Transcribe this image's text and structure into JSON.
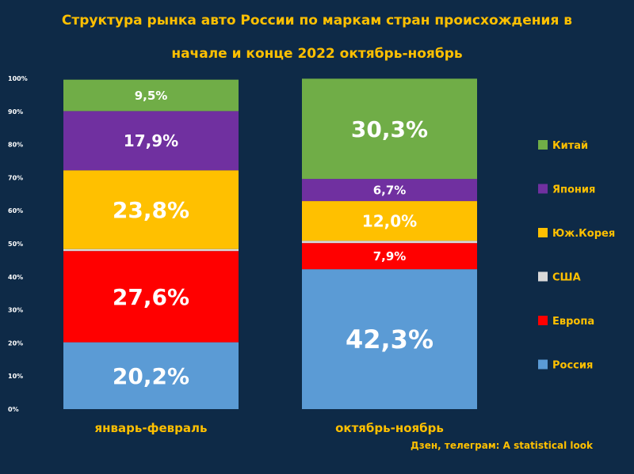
{
  "title_line1": "Структура рынка авто России по маркам стран происхождения в",
  "title_line2": "начале и конце 2022    октябрь-ноябрь",
  "source": "Дзен, телеграм: A statistical look",
  "colors": {
    "background": "#0e2a47",
    "title": "#ffc000",
    "axis_text": "#ffffff"
  },
  "chart_data": {
    "type": "bar",
    "stacked": true,
    "categories": [
      "январь-февраль",
      "октябрь-ноябрь"
    ],
    "series": [
      {
        "name": "Россия",
        "color": "#5b9bd5",
        "values": [
          20.2,
          42.3
        ],
        "labels": [
          "20,2%",
          "42,3%"
        ]
      },
      {
        "name": "Европа",
        "color": "#ff0000",
        "values": [
          27.6,
          7.9
        ],
        "labels": [
          "27,6%",
          "7,9%"
        ]
      },
      {
        "name": "США",
        "color": "#d9d9d9",
        "values": [
          0.6,
          0.7
        ],
        "labels": [
          "",
          ""
        ]
      },
      {
        "name": "Юж.Корея",
        "color": "#ffc000",
        "values": [
          23.8,
          12.0
        ],
        "labels": [
          "23,8%",
          "12,0%"
        ]
      },
      {
        "name": "Япония",
        "color": "#7030a0",
        "values": [
          17.9,
          6.7
        ],
        "labels": [
          "17,9%",
          "6,7%"
        ]
      },
      {
        "name": "Китай",
        "color": "#70ad47",
        "values": [
          9.5,
          30.3
        ],
        "labels": [
          "9,5%",
          "30,3%"
        ]
      }
    ],
    "legend_order": [
      "Китай",
      "Япония",
      "Юж.Корея",
      "США",
      "Европа",
      "Россия"
    ],
    "ylim": [
      0,
      100
    ],
    "yticks": [
      "0%",
      "10%",
      "20%",
      "30%",
      "40%",
      "50%",
      "60%",
      "70%",
      "80%",
      "90%",
      "100%"
    ],
    "legend_position": "right",
    "grid": false
  }
}
